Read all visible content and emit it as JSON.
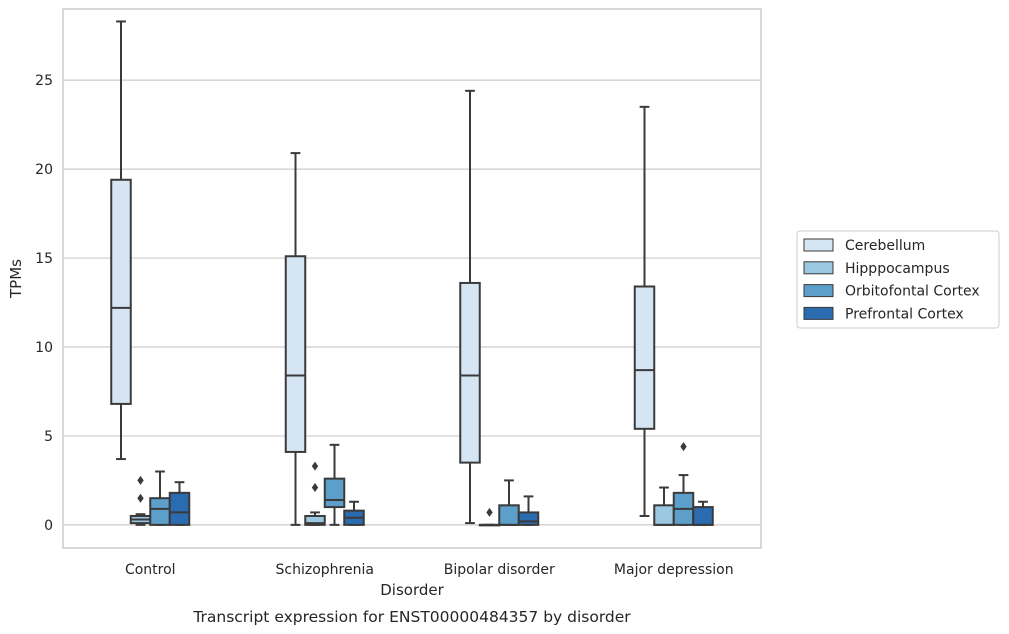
{
  "chart_data": {
    "type": "box",
    "title": "",
    "caption": "Transcript expression for ENST00000484357 by disorder",
    "xlabel": "Disorder",
    "ylabel": "TPMs",
    "ylim": [
      -1.3,
      29.0
    ],
    "yticks": [
      0,
      5,
      10,
      15,
      20,
      25
    ],
    "grid": "horizontal",
    "legend_position": "right",
    "categories": [
      "Control",
      "Schizophrenia",
      "Bipolar disorder",
      "Major depression"
    ],
    "series": [
      {
        "name": "Cerebellum",
        "color": "#d6e5f3",
        "boxes": [
          {
            "whislo": 3.7,
            "q1": 6.8,
            "med": 12.2,
            "q3": 19.4,
            "whishi": 28.3,
            "fliers": []
          },
          {
            "whislo": 0.0,
            "q1": 4.1,
            "med": 8.4,
            "q3": 15.1,
            "whishi": 20.9,
            "fliers": []
          },
          {
            "whislo": 0.1,
            "q1": 3.5,
            "med": 8.4,
            "q3": 13.6,
            "whishi": 24.4,
            "fliers": []
          },
          {
            "whislo": 0.5,
            "q1": 5.4,
            "med": 8.7,
            "q3": 13.4,
            "whishi": 23.5,
            "fliers": []
          }
        ]
      },
      {
        "name": "Hipppocampus",
        "color": "#9ac8e0",
        "boxes": [
          {
            "whislo": 0.0,
            "q1": 0.1,
            "med": 0.3,
            "q3": 0.5,
            "whishi": 0.6,
            "fliers": [
              1.5,
              2.5
            ]
          },
          {
            "whislo": 0.0,
            "q1": 0.0,
            "med": 0.1,
            "q3": 0.5,
            "whishi": 0.7,
            "fliers": [
              2.1,
              3.3
            ]
          },
          {
            "whislo": 0.0,
            "q1": 0.0,
            "med": 0.0,
            "q3": 0.0,
            "whishi": 0.0,
            "fliers": [
              0.7
            ]
          },
          {
            "whislo": 0.0,
            "q1": 0.0,
            "med": 0.0,
            "q3": 1.1,
            "whishi": 2.1,
            "fliers": []
          }
        ]
      },
      {
        "name": "Orbitofontal Cortex",
        "color": "#5b9fca",
        "boxes": [
          {
            "whislo": 0.0,
            "q1": 0.0,
            "med": 0.9,
            "q3": 1.5,
            "whishi": 3.0,
            "fliers": []
          },
          {
            "whislo": 0.0,
            "q1": 1.0,
            "med": 1.4,
            "q3": 2.6,
            "whishi": 4.5,
            "fliers": []
          },
          {
            "whislo": 0.0,
            "q1": 0.0,
            "med": 0.0,
            "q3": 1.1,
            "whishi": 2.5,
            "fliers": []
          },
          {
            "whislo": 0.0,
            "q1": 0.0,
            "med": 0.9,
            "q3": 1.8,
            "whishi": 2.8,
            "fliers": [
              4.4
            ]
          }
        ]
      },
      {
        "name": "Prefrontal Cortex",
        "color": "#2b6cb0",
        "boxes": [
          {
            "whislo": 0.0,
            "q1": 0.0,
            "med": 0.7,
            "q3": 1.8,
            "whishi": 2.4,
            "fliers": []
          },
          {
            "whislo": 0.0,
            "q1": 0.0,
            "med": 0.4,
            "q3": 0.8,
            "whishi": 1.3,
            "fliers": []
          },
          {
            "whislo": 0.0,
            "q1": 0.0,
            "med": 0.2,
            "q3": 0.7,
            "whishi": 1.6,
            "fliers": []
          },
          {
            "whislo": 0.0,
            "q1": 0.0,
            "med": 0.0,
            "q3": 1.0,
            "whishi": 1.3,
            "fliers": []
          }
        ]
      }
    ]
  }
}
